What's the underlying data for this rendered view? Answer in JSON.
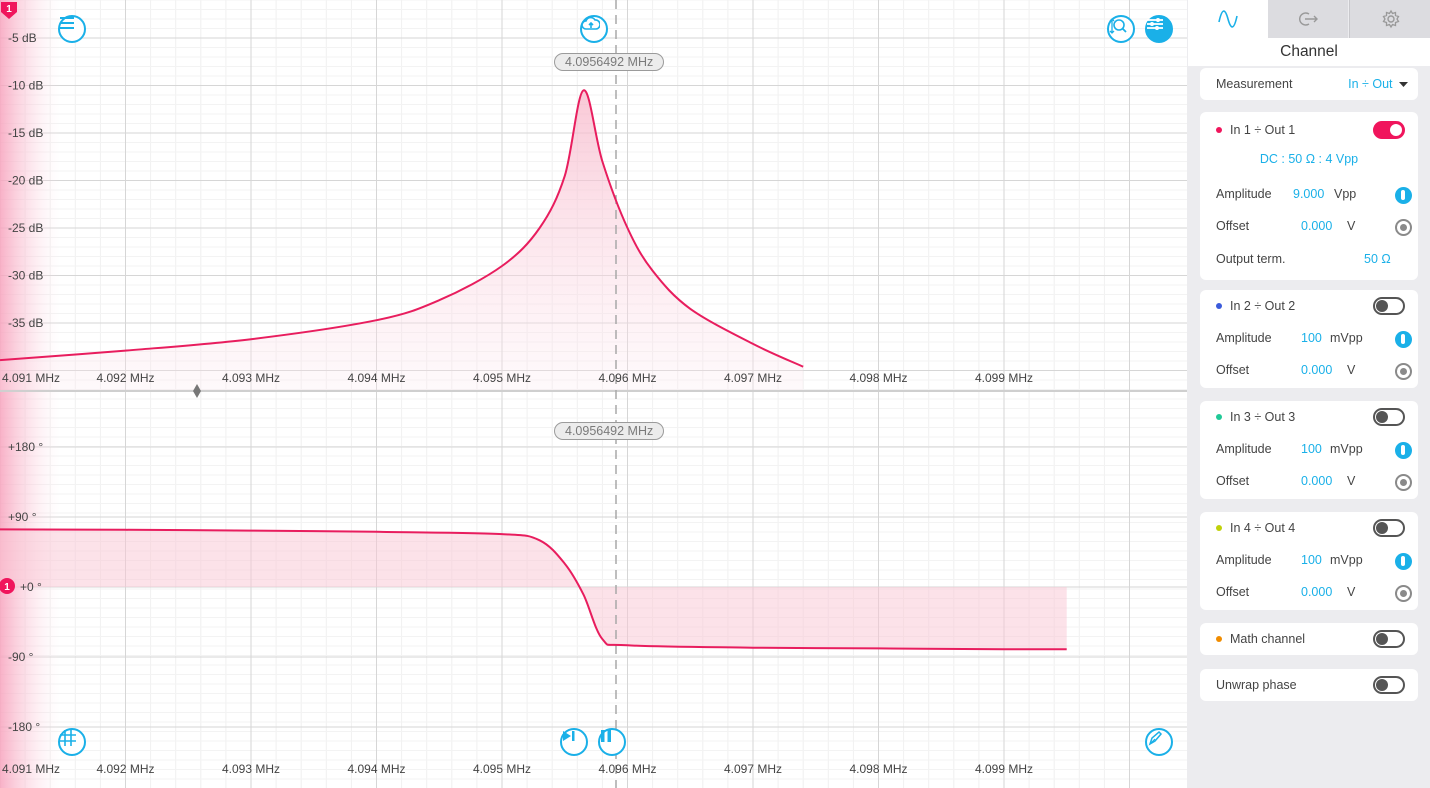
{
  "top_plot": {
    "y_ticks": [
      "-5 dB",
      "-10 dB",
      "-15 dB",
      "-20 dB",
      "-25 dB",
      "-30 dB",
      "-35 dB"
    ],
    "x_ticks": [
      "4.091 MHz",
      "4.092 MHz",
      "4.093 MHz",
      "4.094 MHz",
      "4.095 MHz",
      "4.096 MHz",
      "4.097 MHz",
      "4.098 MHz",
      "4.099 MHz"
    ],
    "cursor_freq": "4.0956492 MHz",
    "channel_marker": "1"
  },
  "bottom_plot": {
    "y_ticks": [
      "+180 °",
      "+90 °",
      "+0 °",
      "-90 °",
      "-180 °"
    ],
    "x_ticks": [
      "4.091 MHz",
      "4.092 MHz",
      "4.093 MHz",
      "4.094 MHz",
      "4.095 MHz",
      "4.096 MHz",
      "4.097 MHz",
      "4.098 MHz",
      "4.099 MHz"
    ],
    "cursor_freq": "4.0956492 MHz",
    "channel_marker": "1"
  },
  "chart_data": [
    {
      "type": "line",
      "ylim": [
        -39,
        -3
      ],
      "xlim": [
        4.091,
        4.0995
      ],
      "series": [
        {
          "x": [
            4.091,
            4.092,
            4.093,
            4.094,
            4.0945,
            4.095,
            4.0953,
            4.0955,
            4.09565,
            4.0958,
            4.096,
            4.0962,
            4.0965,
            4.097,
            4.0974
          ],
          "y": [
            -38.9,
            -37.9,
            -36.7,
            -34.7,
            -32.6,
            -29.0,
            -25.0,
            -19.5,
            -10.5,
            -18.0,
            -25.0,
            -29.5,
            -33.5,
            -37.2,
            -39.6
          ]
        }
      ]
    },
    {
      "type": "line",
      "ylim": [
        -180,
        180
      ],
      "xlim": [
        4.091,
        4.0995
      ],
      "series": [
        {
          "x": [
            4.091,
            4.092,
            4.093,
            4.094,
            4.095,
            4.0953,
            4.0955,
            4.09565,
            4.0958,
            4.096,
            4.097,
            4.098,
            4.099,
            4.0995
          ],
          "y": [
            74,
            73.5,
            72.5,
            71,
            68,
            60,
            30,
            -10,
            -67,
            -75,
            -78,
            -79,
            -80,
            -80
          ]
        }
      ]
    }
  ],
  "panel": {
    "title": "Channel",
    "measurement_label": "Measurement",
    "measurement_value": "In ÷ Out",
    "ch1": {
      "name": "In 1 ÷ Out 1",
      "color": "#f0155c",
      "coupling": "DC : 50 Ω : 4 Vpp",
      "amp_label": "Amplitude",
      "amp_value": "9.000",
      "amp_unit": "Vpp",
      "off_label": "Offset",
      "off_value": "0.000",
      "off_unit": "V",
      "term_label": "Output term.",
      "term_value": "50 Ω"
    },
    "ch2": {
      "name": "In 2 ÷ Out 2",
      "color": "#3b5bdb",
      "amp_label": "Amplitude",
      "amp_value": "100",
      "amp_unit": "mVpp",
      "off_label": "Offset",
      "off_value": "0.000",
      "off_unit": "V"
    },
    "ch3": {
      "name": "In 3 ÷ Out 3",
      "color": "#20c997",
      "amp_label": "Amplitude",
      "amp_value": "100",
      "amp_unit": "mVpp",
      "off_label": "Offset",
      "off_value": "0.000",
      "off_unit": "V"
    },
    "ch4": {
      "name": "In 4 ÷ Out 4",
      "color": "#c0d10a",
      "amp_label": "Amplitude",
      "amp_value": "100",
      "amp_unit": "mVpp",
      "off_label": "Offset",
      "off_value": "0.000",
      "off_unit": "V"
    },
    "math": {
      "name": "Math channel",
      "color": "#f08c00"
    },
    "unwrap": {
      "label": "Unwrap phase"
    }
  }
}
